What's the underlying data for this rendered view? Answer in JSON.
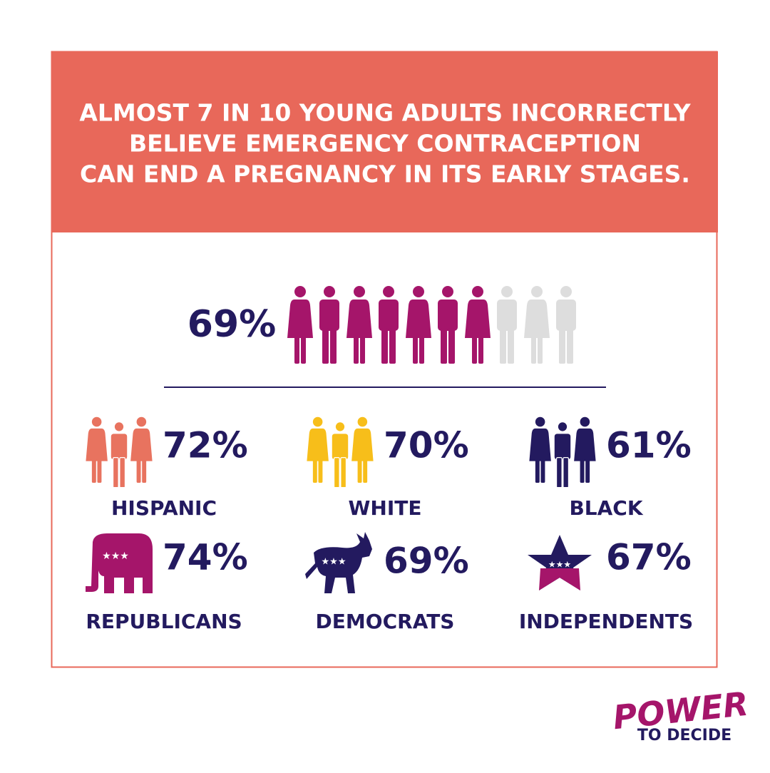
{
  "header": {
    "title_lines": [
      "ALMOST 7 IN 10 YOUNG ADULTS INCORRECTLY",
      "BELIEVE EMERGENCY CONTRACEPTION",
      "CAN END A PREGNANCY IN ITS EARLY STAGES."
    ]
  },
  "overall": {
    "value": "69%"
  },
  "groups": [
    {
      "label": "HISPANIC",
      "value": "72%"
    },
    {
      "label": "WHITE",
      "value": "70%"
    },
    {
      "label": "BLACK",
      "value": "61%"
    },
    {
      "label": "REPUBLICANS",
      "value": "74%"
    },
    {
      "label": "DEMOCRATS",
      "value": "69%"
    },
    {
      "label": "INDEPENDENTS",
      "value": "67%"
    }
  ],
  "logo": {
    "top": "POWER",
    "bottom": "TO DECIDE"
  }
}
